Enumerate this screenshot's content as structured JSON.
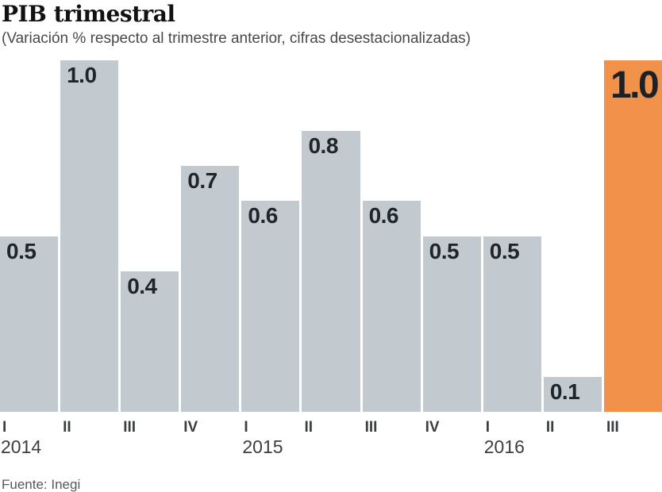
{
  "header": {
    "title": "PIB trimestral",
    "subtitle": "(Variación % respecto al trimestre anterior, cifras desestacionalizadas)"
  },
  "source": "Fuente: Inegi",
  "chart_data": {
    "type": "bar",
    "title": "PIB trimestral",
    "subtitle": "(Variación % respecto al trimestre anterior, cifras desestacionalizadas)",
    "xlabel": "",
    "ylabel": "Variación %",
    "ylim": [
      0,
      1.0
    ],
    "grid": false,
    "legend": "none",
    "categories": [
      "I 2014",
      "II 2014",
      "III 2014",
      "IV 2014",
      "I 2015",
      "II 2015",
      "III 2015",
      "IV 2015",
      "I 2016",
      "II 2016",
      "III 2016"
    ],
    "values": [
      0.5,
      1.0,
      0.4,
      0.7,
      0.6,
      0.8,
      0.6,
      0.5,
      0.5,
      0.1,
      1.0
    ],
    "highlight_index": 10,
    "colors": {
      "bar": "#c2cad0",
      "highlight": "#f2914a",
      "value_label": "#222528"
    },
    "bars": [
      {
        "quarter": "I",
        "year": "2014",
        "value": 0.5,
        "label": "0.5",
        "highlight": false
      },
      {
        "quarter": "II",
        "year": "",
        "value": 1.0,
        "label": "1.0",
        "highlight": false
      },
      {
        "quarter": "III",
        "year": "",
        "value": 0.4,
        "label": "0.4",
        "highlight": false
      },
      {
        "quarter": "IV",
        "year": "",
        "value": 0.7,
        "label": "0.7",
        "highlight": false
      },
      {
        "quarter": "I",
        "year": "2015",
        "value": 0.6,
        "label": "0.6",
        "highlight": false
      },
      {
        "quarter": "II",
        "year": "",
        "value": 0.8,
        "label": "0.8",
        "highlight": false
      },
      {
        "quarter": "III",
        "year": "",
        "value": 0.6,
        "label": "0.6",
        "highlight": false
      },
      {
        "quarter": "IV",
        "year": "",
        "value": 0.5,
        "label": "0.5",
        "highlight": false
      },
      {
        "quarter": "I",
        "year": "2016",
        "value": 0.5,
        "label": "0.5",
        "highlight": false
      },
      {
        "quarter": "II",
        "year": "",
        "value": 0.1,
        "label": "0.1",
        "highlight": false
      },
      {
        "quarter": "III",
        "year": "",
        "value": 1.0,
        "label": "1.0",
        "highlight": true
      }
    ]
  }
}
